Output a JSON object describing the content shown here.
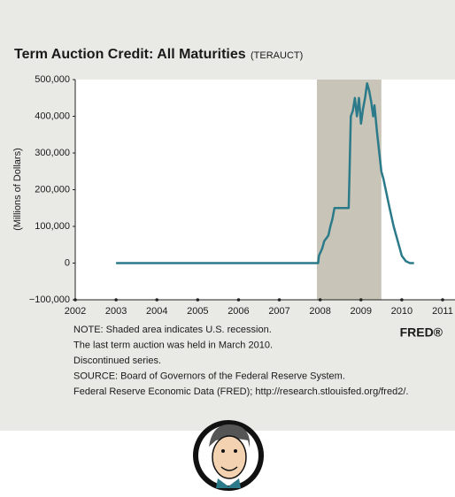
{
  "chart_data": {
    "type": "line",
    "title": "Term Auction Credit: All Maturities",
    "series_id": "(TERAUCT)",
    "y_label": "(Millions of Dollars)",
    "notes": [
      "NOTE: Shaded area indicates U.S. recession.",
      "The last term auction was held in March 2010.",
      "Discontinued series.",
      "SOURCE: Board of Governors of the Federal Reserve System.",
      "Federal Reserve Economic Data (FRED); http://research.stlouisfed.org/fred2/."
    ],
    "brand": "FRED®",
    "recessions": [
      [
        2007.92,
        2009.5
      ]
    ],
    "recession_color": "#c8c5b8",
    "grid": false,
    "xlim": [
      2002,
      2011
    ],
    "xticks": [
      2002,
      2003,
      2004,
      2005,
      2006,
      2007,
      2008,
      2009,
      2010,
      2011
    ],
    "ylim": [
      -100000,
      500000
    ],
    "yticks": [
      {
        "value": -100000,
        "label": "−100,000"
      },
      0,
      {
        "value": 100000,
        "label": "100,000"
      },
      {
        "value": 200000,
        "label": "200,000"
      },
      {
        "value": 300000,
        "label": "300,000"
      },
      {
        "value": 400000,
        "label": "400,000"
      },
      {
        "value": 500000,
        "label": "500,000"
      }
    ],
    "x": [
      2003.0,
      2007.95,
      2007.97,
      2008.05,
      2008.1,
      2008.2,
      2008.25,
      2008.3,
      2008.35,
      2008.7,
      2008.72,
      2008.75,
      2008.8,
      2008.85,
      2008.9,
      2008.95,
      2009.0,
      2009.05,
      2009.1,
      2009.15,
      2009.2,
      2009.25,
      2009.3,
      2009.33,
      2009.4,
      2009.5,
      2009.55,
      2009.7,
      2009.8,
      2009.9,
      2010.0,
      2010.1,
      2010.2,
      2010.3
    ],
    "series": [
      {
        "name": "TERAUCT",
        "color": "#2b7a8a",
        "values": [
          0,
          0,
          20000,
          40000,
          60000,
          75000,
          100000,
          120000,
          150000,
          150000,
          250000,
          400000,
          415000,
          450000,
          400000,
          450000,
          380000,
          420000,
          450000,
          490000,
          470000,
          440000,
          400000,
          430000,
          350000,
          250000,
          230000,
          150000,
          100000,
          60000,
          20000,
          5000,
          0,
          0
        ]
      }
    ]
  }
}
